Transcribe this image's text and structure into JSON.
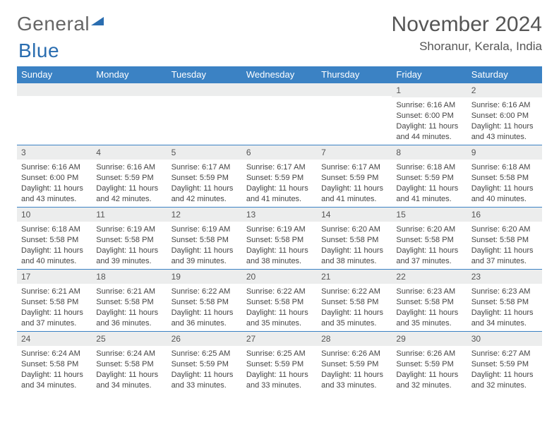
{
  "logo": {
    "part1": "General",
    "part2": "Blue"
  },
  "title": "November 2024",
  "location": "Shoranur, Kerala, India",
  "colors": {
    "header_bg": "#3b82c4",
    "header_text": "#ffffff",
    "daynum_bg": "#eceded",
    "border": "#3b82c4",
    "text": "#444444",
    "title_text": "#555555",
    "logo_gray": "#666666",
    "logo_blue": "#2a6db0"
  },
  "dayNames": [
    "Sunday",
    "Monday",
    "Tuesday",
    "Wednesday",
    "Thursday",
    "Friday",
    "Saturday"
  ],
  "weeks": [
    [
      null,
      null,
      null,
      null,
      null,
      {
        "n": "1",
        "sr": "6:16 AM",
        "ss": "6:00 PM",
        "dl": "11 hours and 44 minutes."
      },
      {
        "n": "2",
        "sr": "6:16 AM",
        "ss": "6:00 PM",
        "dl": "11 hours and 43 minutes."
      }
    ],
    [
      {
        "n": "3",
        "sr": "6:16 AM",
        "ss": "6:00 PM",
        "dl": "11 hours and 43 minutes."
      },
      {
        "n": "4",
        "sr": "6:16 AM",
        "ss": "5:59 PM",
        "dl": "11 hours and 42 minutes."
      },
      {
        "n": "5",
        "sr": "6:17 AM",
        "ss": "5:59 PM",
        "dl": "11 hours and 42 minutes."
      },
      {
        "n": "6",
        "sr": "6:17 AM",
        "ss": "5:59 PM",
        "dl": "11 hours and 41 minutes."
      },
      {
        "n": "7",
        "sr": "6:17 AM",
        "ss": "5:59 PM",
        "dl": "11 hours and 41 minutes."
      },
      {
        "n": "8",
        "sr": "6:18 AM",
        "ss": "5:59 PM",
        "dl": "11 hours and 41 minutes."
      },
      {
        "n": "9",
        "sr": "6:18 AM",
        "ss": "5:58 PM",
        "dl": "11 hours and 40 minutes."
      }
    ],
    [
      {
        "n": "10",
        "sr": "6:18 AM",
        "ss": "5:58 PM",
        "dl": "11 hours and 40 minutes."
      },
      {
        "n": "11",
        "sr": "6:19 AM",
        "ss": "5:58 PM",
        "dl": "11 hours and 39 minutes."
      },
      {
        "n": "12",
        "sr": "6:19 AM",
        "ss": "5:58 PM",
        "dl": "11 hours and 39 minutes."
      },
      {
        "n": "13",
        "sr": "6:19 AM",
        "ss": "5:58 PM",
        "dl": "11 hours and 38 minutes."
      },
      {
        "n": "14",
        "sr": "6:20 AM",
        "ss": "5:58 PM",
        "dl": "11 hours and 38 minutes."
      },
      {
        "n": "15",
        "sr": "6:20 AM",
        "ss": "5:58 PM",
        "dl": "11 hours and 37 minutes."
      },
      {
        "n": "16",
        "sr": "6:20 AM",
        "ss": "5:58 PM",
        "dl": "11 hours and 37 minutes."
      }
    ],
    [
      {
        "n": "17",
        "sr": "6:21 AM",
        "ss": "5:58 PM",
        "dl": "11 hours and 37 minutes."
      },
      {
        "n": "18",
        "sr": "6:21 AM",
        "ss": "5:58 PM",
        "dl": "11 hours and 36 minutes."
      },
      {
        "n": "19",
        "sr": "6:22 AM",
        "ss": "5:58 PM",
        "dl": "11 hours and 36 minutes."
      },
      {
        "n": "20",
        "sr": "6:22 AM",
        "ss": "5:58 PM",
        "dl": "11 hours and 35 minutes."
      },
      {
        "n": "21",
        "sr": "6:22 AM",
        "ss": "5:58 PM",
        "dl": "11 hours and 35 minutes."
      },
      {
        "n": "22",
        "sr": "6:23 AM",
        "ss": "5:58 PM",
        "dl": "11 hours and 35 minutes."
      },
      {
        "n": "23",
        "sr": "6:23 AM",
        "ss": "5:58 PM",
        "dl": "11 hours and 34 minutes."
      }
    ],
    [
      {
        "n": "24",
        "sr": "6:24 AM",
        "ss": "5:58 PM",
        "dl": "11 hours and 34 minutes."
      },
      {
        "n": "25",
        "sr": "6:24 AM",
        "ss": "5:58 PM",
        "dl": "11 hours and 34 minutes."
      },
      {
        "n": "26",
        "sr": "6:25 AM",
        "ss": "5:59 PM",
        "dl": "11 hours and 33 minutes."
      },
      {
        "n": "27",
        "sr": "6:25 AM",
        "ss": "5:59 PM",
        "dl": "11 hours and 33 minutes."
      },
      {
        "n": "28",
        "sr": "6:26 AM",
        "ss": "5:59 PM",
        "dl": "11 hours and 33 minutes."
      },
      {
        "n": "29",
        "sr": "6:26 AM",
        "ss": "5:59 PM",
        "dl": "11 hours and 32 minutes."
      },
      {
        "n": "30",
        "sr": "6:27 AM",
        "ss": "5:59 PM",
        "dl": "11 hours and 32 minutes."
      }
    ]
  ],
  "labels": {
    "sunrise": "Sunrise: ",
    "sunset": "Sunset: ",
    "daylight": "Daylight: "
  }
}
